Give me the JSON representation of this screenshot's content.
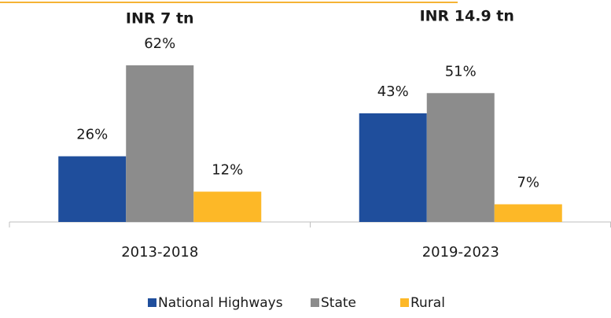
{
  "chart_data": {
    "type": "bar",
    "categories": [
      "2013-2018",
      "2019-2023"
    ],
    "annotations": [
      "INR 7 tn",
      "INR 14.9 tn"
    ],
    "series": [
      {
        "name": "National Highways",
        "color": "#1f4e9c",
        "values": [
          26,
          43
        ],
        "value_labels": [
          "26%",
          "43%"
        ]
      },
      {
        "name": "State",
        "color": "#8c8c8c",
        "values": [
          62,
          51
        ],
        "value_labels": [
          "62%",
          "51%"
        ]
      },
      {
        "name": "Rural",
        "color": "#fdb827",
        "values": [
          12,
          7
        ],
        "value_labels": [
          "12%",
          "7%"
        ]
      }
    ],
    "legend": "bottom"
  }
}
